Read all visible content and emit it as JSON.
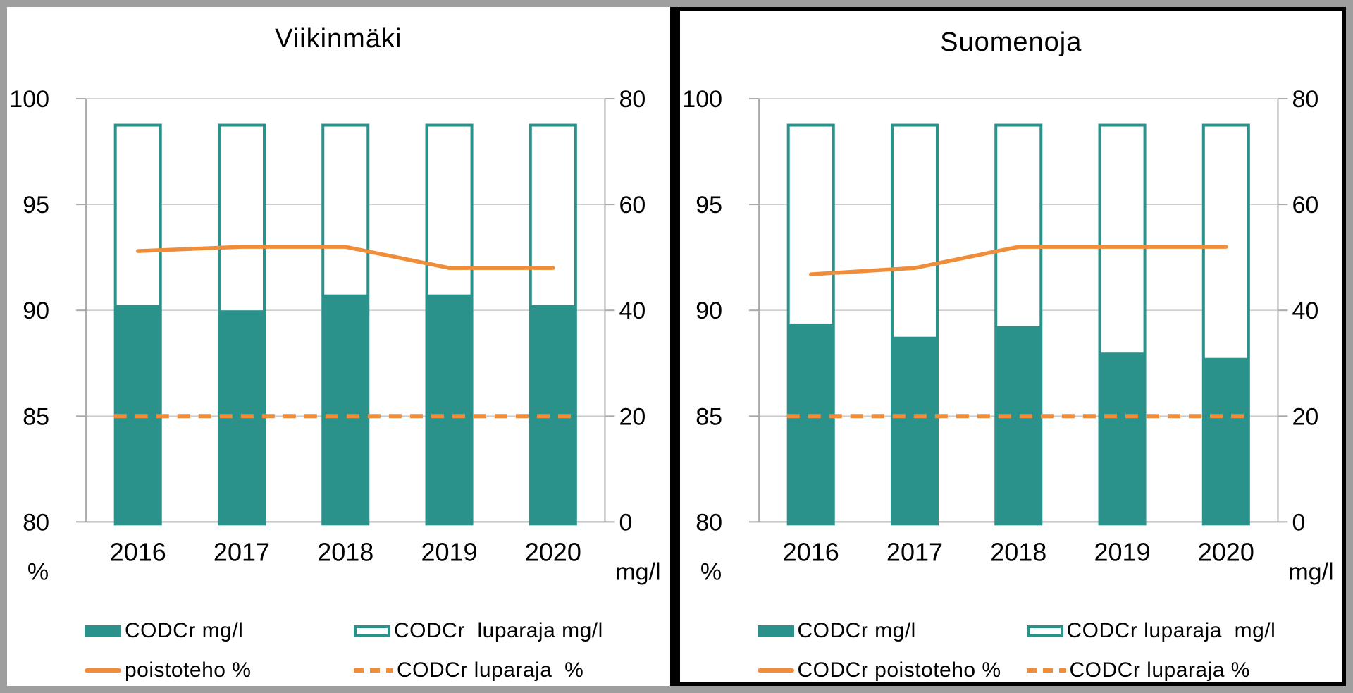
{
  "colors": {
    "teal": "#2A918B",
    "orange": "#EF8D3B",
    "grid": "#C9C9C9",
    "axis": "#ABABAB",
    "outer_frame": "#9E9E9E",
    "panel_border": "#000000"
  },
  "chart_data": [
    {
      "type": "bar",
      "title": "Viikinmäki",
      "categories": [
        "2016",
        "2017",
        "2018",
        "2019",
        "2020"
      ],
      "series": [
        {
          "name": "CODCr mg/l",
          "kind": "bar-filled",
          "axis": "right",
          "values": [
            41,
            40,
            43,
            43,
            41
          ]
        },
        {
          "name": "CODCr  luparaja mg/l",
          "kind": "bar-outline",
          "axis": "right",
          "values": [
            75,
            75,
            75,
            75,
            75
          ]
        },
        {
          "name": "poistoteho %",
          "kind": "line-solid",
          "axis": "left",
          "values": [
            92.8,
            93,
            93,
            92,
            92
          ]
        },
        {
          "name": "CODCr luparaja  %",
          "kind": "line-dashed",
          "axis": "left",
          "values": [
            85,
            85,
            85,
            85,
            85
          ]
        }
      ],
      "left_axis": {
        "unit": "%",
        "min": 80,
        "max": 100,
        "ticks": [
          100,
          95,
          90,
          85,
          80
        ]
      },
      "right_axis": {
        "unit": "mg/l",
        "min": 0,
        "max": 80,
        "ticks": [
          80,
          60,
          40,
          20,
          0
        ]
      },
      "grid": true,
      "legend_position": "bottom"
    },
    {
      "type": "bar",
      "title": "Suomenoja",
      "categories": [
        "2016",
        "2017",
        "2018",
        "2019",
        "2020"
      ],
      "series": [
        {
          "name": "CODCr mg/l",
          "kind": "bar-filled",
          "axis": "right",
          "values": [
            37.5,
            35,
            37,
            32,
            31
          ]
        },
        {
          "name": "CODCr luparaja  mg/l",
          "kind": "bar-outline",
          "axis": "right",
          "values": [
            75,
            75,
            75,
            75,
            75
          ]
        },
        {
          "name": "CODCr poistoteho %",
          "kind": "line-solid",
          "axis": "left",
          "values": [
            91.7,
            92,
            93,
            93,
            93
          ]
        },
        {
          "name": "CODCr luparaja %",
          "kind": "line-dashed",
          "axis": "left",
          "values": [
            85,
            85,
            85,
            85,
            85
          ]
        }
      ],
      "left_axis": {
        "unit": "%",
        "min": 80,
        "max": 100,
        "ticks": [
          100,
          95,
          90,
          85,
          80
        ]
      },
      "right_axis": {
        "unit": "mg/l",
        "min": 0,
        "max": 80,
        "ticks": [
          80,
          60,
          40,
          20,
          0
        ]
      },
      "grid": true,
      "legend_position": "bottom"
    }
  ]
}
